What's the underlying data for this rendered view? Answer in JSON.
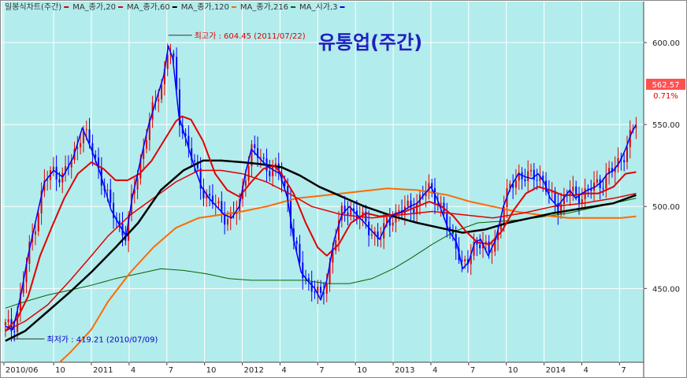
{
  "legend": [
    {
      "label": "일봉식차트(주간)",
      "color": "#333333"
    },
    {
      "label": "MA_종가,20",
      "color": "#e00000"
    },
    {
      "label": "MA_종가,60",
      "color": "#e00000"
    },
    {
      "label": "MA_종가,120",
      "color": "#000000"
    },
    {
      "label": "MA_종가,216",
      "color": "#ff6a00"
    },
    {
      "label": "MA_시가,3",
      "color": "#006400"
    }
  ],
  "title": "유통업(주간)",
  "annotations": {
    "high": "최고가 : 604.45 (2011/07/22)",
    "low": "최저가 : 419.21 (2010/07/09)"
  },
  "price_tag": {
    "value": "562.57",
    "change": "0.71%"
  },
  "colors": {
    "plot_bg": "#b3ecec",
    "grid": "#ffffff",
    "up_candle": "#e00000",
    "down_candle": "#0000ff",
    "close_line": "#0000ff",
    "ma20": "#e00000",
    "ma60": "#e00000",
    "ma120": "#000000",
    "ma216": "#ff6a00",
    "ma3_open": "#006400",
    "title": "#2020c0",
    "tag_bg": "#ff5050"
  },
  "chart_data": {
    "type": "line",
    "title": "유통업(주간)",
    "xlabel": "",
    "ylabel": "",
    "ylim": [
      405,
      625
    ],
    "yticks": [
      450,
      500,
      550,
      600
    ],
    "ytick_labels": [
      "450.00",
      "500.00",
      "550.00",
      "600.00"
    ],
    "x_range": [
      2010.45,
      2014.7
    ],
    "xticks": [
      {
        "x": 2010.46,
        "label": "2010/06"
      },
      {
        "x": 2010.79,
        "label": "10"
      },
      {
        "x": 2011.04,
        "label": "2011"
      },
      {
        "x": 2011.29,
        "label": "4"
      },
      {
        "x": 2011.54,
        "label": "7"
      },
      {
        "x": 2011.79,
        "label": "10"
      },
      {
        "x": 2012.04,
        "label": "2012"
      },
      {
        "x": 2012.29,
        "label": "4"
      },
      {
        "x": 2012.54,
        "label": "7"
      },
      {
        "x": 2012.79,
        "label": "10"
      },
      {
        "x": 2013.04,
        "label": "2013"
      },
      {
        "x": 2013.29,
        "label": "4"
      },
      {
        "x": 2013.54,
        "label": "7"
      },
      {
        "x": 2013.79,
        "label": "10"
      },
      {
        "x": 2014.04,
        "label": "2014"
      },
      {
        "x": 2014.29,
        "label": "4"
      },
      {
        "x": 2014.54,
        "label": "7"
      }
    ],
    "high_point": {
      "x": 2011.55,
      "y": 604.45
    },
    "low_point": {
      "x": 2010.52,
      "y": 419.21
    },
    "series": [
      {
        "key": "close",
        "color": "#0000ff",
        "points": [
          [
            2010.47,
            427
          ],
          [
            2010.52,
            425
          ],
          [
            2010.57,
            445
          ],
          [
            2010.62,
            470
          ],
          [
            2010.68,
            495
          ],
          [
            2010.73,
            515
          ],
          [
            2010.79,
            522
          ],
          [
            2010.85,
            518
          ],
          [
            2010.92,
            530
          ],
          [
            2010.98,
            548
          ],
          [
            2011.04,
            535
          ],
          [
            2011.1,
            520
          ],
          [
            2011.17,
            498
          ],
          [
            2011.23,
            488
          ],
          [
            2011.27,
            482
          ],
          [
            2011.31,
            505
          ],
          [
            2011.37,
            530
          ],
          [
            2011.42,
            550
          ],
          [
            2011.47,
            565
          ],
          [
            2011.52,
            580
          ],
          [
            2011.55,
            598
          ],
          [
            2011.58,
            590
          ],
          [
            2011.62,
            555
          ],
          [
            2011.67,
            540
          ],
          [
            2011.72,
            525
          ],
          [
            2011.77,
            512
          ],
          [
            2011.82,
            505
          ],
          [
            2011.87,
            500
          ],
          [
            2011.92,
            495
          ],
          [
            2011.97,
            493
          ],
          [
            2012.02,
            500
          ],
          [
            2012.06,
            520
          ],
          [
            2012.1,
            535
          ],
          [
            2012.15,
            530
          ],
          [
            2012.2,
            525
          ],
          [
            2012.25,
            522
          ],
          [
            2012.29,
            520
          ],
          [
            2012.34,
            505
          ],
          [
            2012.38,
            480
          ],
          [
            2012.43,
            460
          ],
          [
            2012.47,
            455
          ],
          [
            2012.52,
            450
          ],
          [
            2012.56,
            443
          ],
          [
            2012.6,
            455
          ],
          [
            2012.65,
            480
          ],
          [
            2012.7,
            495
          ],
          [
            2012.75,
            500
          ],
          [
            2012.8,
            495
          ],
          [
            2012.85,
            490
          ],
          [
            2012.9,
            485
          ],
          [
            2012.95,
            480
          ],
          [
            2013.0,
            490
          ],
          [
            2013.04,
            495
          ],
          [
            2013.1,
            497
          ],
          [
            2013.15,
            500
          ],
          [
            2013.2,
            502
          ],
          [
            2013.25,
            508
          ],
          [
            2013.29,
            512
          ],
          [
            2013.33,
            505
          ],
          [
            2013.37,
            495
          ],
          [
            2013.41,
            485
          ],
          [
            2013.46,
            478
          ],
          [
            2013.5,
            462
          ],
          [
            2013.54,
            466
          ],
          [
            2013.58,
            478
          ],
          [
            2013.62,
            480
          ],
          [
            2013.67,
            470
          ],
          [
            2013.72,
            480
          ],
          [
            2013.77,
            500
          ],
          [
            2013.82,
            512
          ],
          [
            2013.87,
            520
          ],
          [
            2013.92,
            518
          ],
          [
            2013.96,
            517
          ],
          [
            2014.0,
            520
          ],
          [
            2014.04,
            515
          ],
          [
            2014.08,
            505
          ],
          [
            2014.13,
            500
          ],
          [
            2014.17,
            505
          ],
          [
            2014.21,
            510
          ],
          [
            2014.25,
            505
          ],
          [
            2014.29,
            508
          ],
          [
            2014.33,
            510
          ],
          [
            2014.38,
            512
          ],
          [
            2014.42,
            515
          ],
          [
            2014.46,
            520
          ],
          [
            2014.5,
            522
          ],
          [
            2014.54,
            527
          ],
          [
            2014.58,
            535
          ],
          [
            2014.62,
            545
          ],
          [
            2014.65,
            550
          ]
        ]
      },
      {
        "key": "ma20",
        "color": "#e00000",
        "points": [
          [
            2010.47,
            424
          ],
          [
            2010.55,
            432
          ],
          [
            2010.62,
            445
          ],
          [
            2010.7,
            470
          ],
          [
            2010.78,
            488
          ],
          [
            2010.86,
            505
          ],
          [
            2010.95,
            520
          ],
          [
            2011.04,
            527
          ],
          [
            2011.12,
            523
          ],
          [
            2011.2,
            516
          ],
          [
            2011.28,
            516
          ],
          [
            2011.36,
            520
          ],
          [
            2011.44,
            528
          ],
          [
            2011.52,
            540
          ],
          [
            2011.6,
            552
          ],
          [
            2011.64,
            555
          ],
          [
            2011.7,
            553
          ],
          [
            2011.78,
            540
          ],
          [
            2011.86,
            520
          ],
          [
            2011.94,
            510
          ],
          [
            2012.02,
            506
          ],
          [
            2012.1,
            515
          ],
          [
            2012.18,
            523
          ],
          [
            2012.25,
            525
          ],
          [
            2012.3,
            520
          ],
          [
            2012.38,
            508
          ],
          [
            2012.46,
            490
          ],
          [
            2012.54,
            475
          ],
          [
            2012.6,
            470
          ],
          [
            2012.68,
            477
          ],
          [
            2012.76,
            490
          ],
          [
            2012.86,
            496
          ],
          [
            2012.95,
            494
          ],
          [
            2013.04,
            495
          ],
          [
            2013.12,
            497
          ],
          [
            2013.2,
            500
          ],
          [
            2013.28,
            503
          ],
          [
            2013.36,
            500
          ],
          [
            2013.44,
            494
          ],
          [
            2013.52,
            485
          ],
          [
            2013.6,
            478
          ],
          [
            2013.68,
            477
          ],
          [
            2013.76,
            485
          ],
          [
            2013.84,
            498
          ],
          [
            2013.92,
            508
          ],
          [
            2014.0,
            512
          ],
          [
            2014.08,
            510
          ],
          [
            2014.16,
            507
          ],
          [
            2014.24,
            507
          ],
          [
            2014.32,
            508
          ],
          [
            2014.4,
            508
          ],
          [
            2014.5,
            512
          ],
          [
            2014.58,
            520
          ],
          [
            2014.65,
            521
          ]
        ]
      },
      {
        "key": "ma120",
        "color": "#000000",
        "points": [
          [
            2010.47,
            418
          ],
          [
            2010.6,
            424
          ],
          [
            2010.75,
            436
          ],
          [
            2010.9,
            448
          ],
          [
            2011.04,
            460
          ],
          [
            2011.2,
            475
          ],
          [
            2011.35,
            490
          ],
          [
            2011.5,
            510
          ],
          [
            2011.65,
            522
          ],
          [
            2011.78,
            528
          ],
          [
            2011.9,
            528
          ],
          [
            2012.04,
            527
          ],
          [
            2012.15,
            526
          ],
          [
            2012.3,
            524
          ],
          [
            2012.42,
            519
          ],
          [
            2012.55,
            512
          ],
          [
            2012.7,
            506
          ],
          [
            2012.85,
            500
          ],
          [
            2013.04,
            494
          ],
          [
            2013.2,
            490
          ],
          [
            2013.35,
            487
          ],
          [
            2013.5,
            484
          ],
          [
            2013.65,
            486
          ],
          [
            2013.8,
            490
          ],
          [
            2013.95,
            493
          ],
          [
            2014.1,
            496
          ],
          [
            2014.3,
            499
          ],
          [
            2014.5,
            502
          ],
          [
            2014.65,
            507
          ]
        ]
      },
      {
        "key": "ma216",
        "color": "#ff6a00",
        "points": [
          [
            2010.83,
            405
          ],
          [
            2010.9,
            411
          ],
          [
            2011.04,
            425
          ],
          [
            2011.15,
            442
          ],
          [
            2011.3,
            460
          ],
          [
            2011.45,
            475
          ],
          [
            2011.6,
            487
          ],
          [
            2011.75,
            493
          ],
          [
            2011.9,
            495
          ],
          [
            2012.04,
            497
          ],
          [
            2012.2,
            500
          ],
          [
            2012.4,
            505
          ],
          [
            2012.6,
            507
          ],
          [
            2012.8,
            509
          ],
          [
            2013.0,
            511
          ],
          [
            2013.2,
            510
          ],
          [
            2013.4,
            507
          ],
          [
            2013.55,
            503
          ],
          [
            2013.7,
            500
          ],
          [
            2013.85,
            497
          ],
          [
            2014.0,
            495
          ],
          [
            2014.2,
            493
          ],
          [
            2014.4,
            493
          ],
          [
            2014.55,
            493
          ],
          [
            2014.65,
            494
          ]
        ]
      },
      {
        "key": "ma3_open",
        "color": "#006400",
        "points": [
          [
            2010.47,
            438
          ],
          [
            2010.6,
            442
          ],
          [
            2010.75,
            446
          ],
          [
            2010.9,
            449
          ],
          [
            2011.04,
            452
          ],
          [
            2011.2,
            456
          ],
          [
            2011.35,
            459
          ],
          [
            2011.5,
            462
          ],
          [
            2011.65,
            461
          ],
          [
            2011.8,
            459
          ],
          [
            2011.95,
            456
          ],
          [
            2012.1,
            455
          ],
          [
            2012.25,
            455
          ],
          [
            2012.45,
            455
          ],
          [
            2012.6,
            453
          ],
          [
            2012.75,
            453
          ],
          [
            2012.9,
            456
          ],
          [
            2013.04,
            462
          ],
          [
            2013.15,
            468
          ],
          [
            2013.3,
            477
          ],
          [
            2013.45,
            485
          ],
          [
            2013.6,
            490
          ],
          [
            2013.75,
            491
          ],
          [
            2013.9,
            492
          ],
          [
            2014.05,
            494
          ],
          [
            2014.2,
            496
          ],
          [
            2014.35,
            499
          ],
          [
            2014.5,
            502
          ],
          [
            2014.65,
            505
          ]
        ]
      }
    ],
    "ma60_points": [
      [
        2010.47,
        424
      ],
      [
        2010.6,
        430
      ],
      [
        2010.75,
        440
      ],
      [
        2010.9,
        455
      ],
      [
        2011.04,
        470
      ],
      [
        2011.15,
        482
      ],
      [
        2011.3,
        495
      ],
      [
        2011.45,
        505
      ],
      [
        2011.6,
        515
      ],
      [
        2011.75,
        522
      ],
      [
        2011.9,
        522
      ],
      [
        2012.04,
        520
      ],
      [
        2012.2,
        515
      ],
      [
        2012.35,
        508
      ],
      [
        2012.5,
        500
      ],
      [
        2012.7,
        495
      ],
      [
        2012.9,
        493
      ],
      [
        2013.1,
        495
      ],
      [
        2013.3,
        497
      ],
      [
        2013.5,
        495
      ],
      [
        2013.7,
        493
      ],
      [
        2013.9,
        496
      ],
      [
        2014.1,
        500
      ],
      [
        2014.3,
        502
      ],
      [
        2014.5,
        505
      ],
      [
        2014.65,
        508
      ]
    ]
  }
}
